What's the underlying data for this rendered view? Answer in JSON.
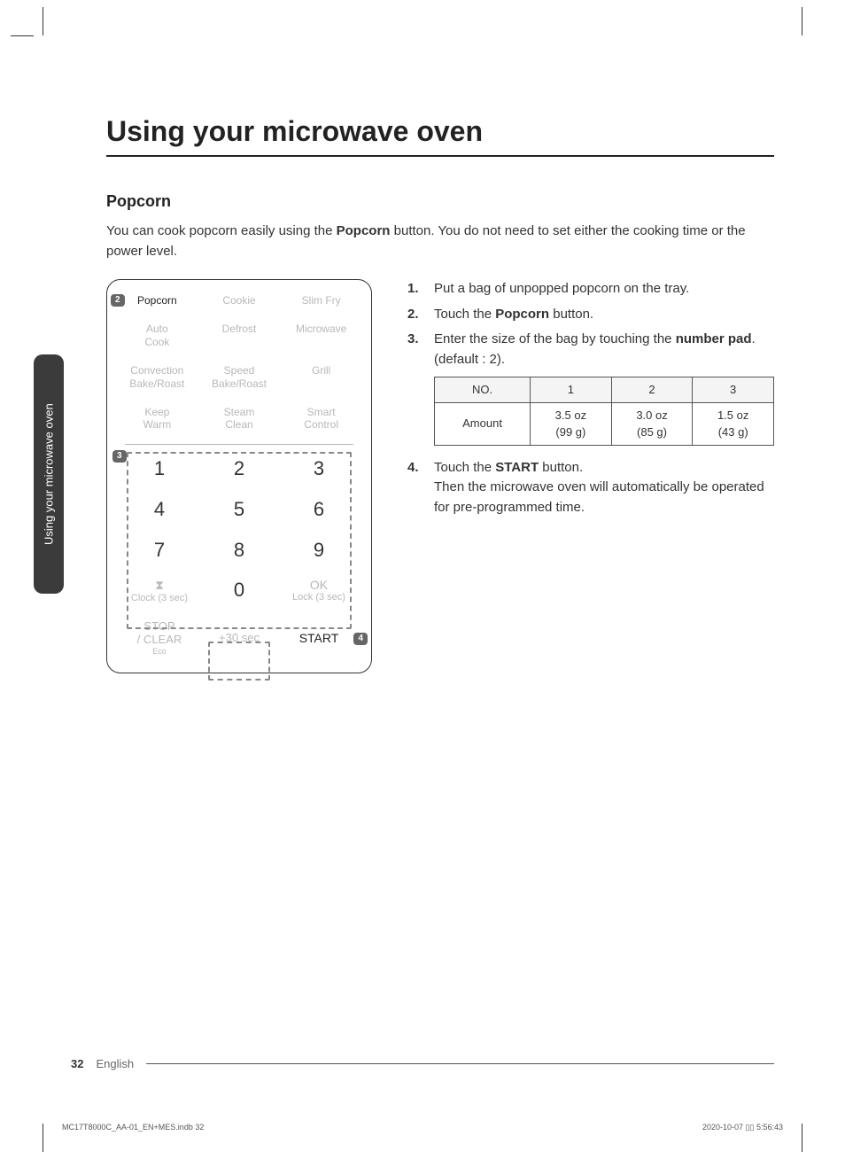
{
  "title": "Using your microwave oven",
  "section": "Popcorn",
  "intro_pre": "You can cook popcorn easily using the ",
  "intro_bold": "Popcorn",
  "intro_post": " button. You do not need to set either the cooking time or the power level.",
  "panel": {
    "row1": [
      "Popcorn",
      "Cookie",
      "Slim Fry"
    ],
    "row2": [
      "Auto\nCook",
      "Defrost",
      "Microwave"
    ],
    "row3": [
      "Convection\nBake/Roast",
      "Speed\nBake/Roast",
      "Grill"
    ],
    "row4": [
      "Keep\nWarm",
      "Steam\nClean",
      "Smart\nControl"
    ],
    "numpad": [
      "1",
      "2",
      "3",
      "4",
      "5",
      "6",
      "7",
      "8",
      "9"
    ],
    "clock": "Clock (3 sec)",
    "zero": "0",
    "ok": "OK",
    "lock": "Lock (3 sec)",
    "stop": "STOP\n/ CLEAR",
    "eco": "Eco",
    "plus30": "+30 sec",
    "start": "START",
    "badges": {
      "b2": "2",
      "b3": "3",
      "b4": "4"
    }
  },
  "steps": [
    {
      "n": "1.",
      "text": "Put a bag of unpopped popcorn on the tray."
    },
    {
      "n": "2.",
      "pre": "Touch the ",
      "b": "Popcorn",
      "post": " button."
    },
    {
      "n": "3.",
      "pre": "Enter the size of the bag by touching the ",
      "b": "number pad",
      "post": ". (default : 2)."
    },
    {
      "n": "4.",
      "pre": "Touch the ",
      "b": "START",
      "post": " button.",
      "extra": "Then the microwave oven will automatically be operated for pre-programmed time."
    }
  ],
  "table": {
    "header": [
      "NO.",
      "1",
      "2",
      "3"
    ],
    "row_label": "Amount",
    "cells_top": [
      "3.5 oz",
      "3.0 oz",
      "1.5 oz"
    ],
    "cells_bot": [
      "(99 g)",
      "(85 g)",
      "(43 g)"
    ]
  },
  "side_tab": "Using your microwave oven",
  "footer": {
    "page": "32",
    "lang": "English"
  },
  "meta": {
    "left": "MC17T8000C_AA-01_EN+MES.indb   32",
    "right": "2020-10-07   ▯▯ 5:56:43"
  }
}
